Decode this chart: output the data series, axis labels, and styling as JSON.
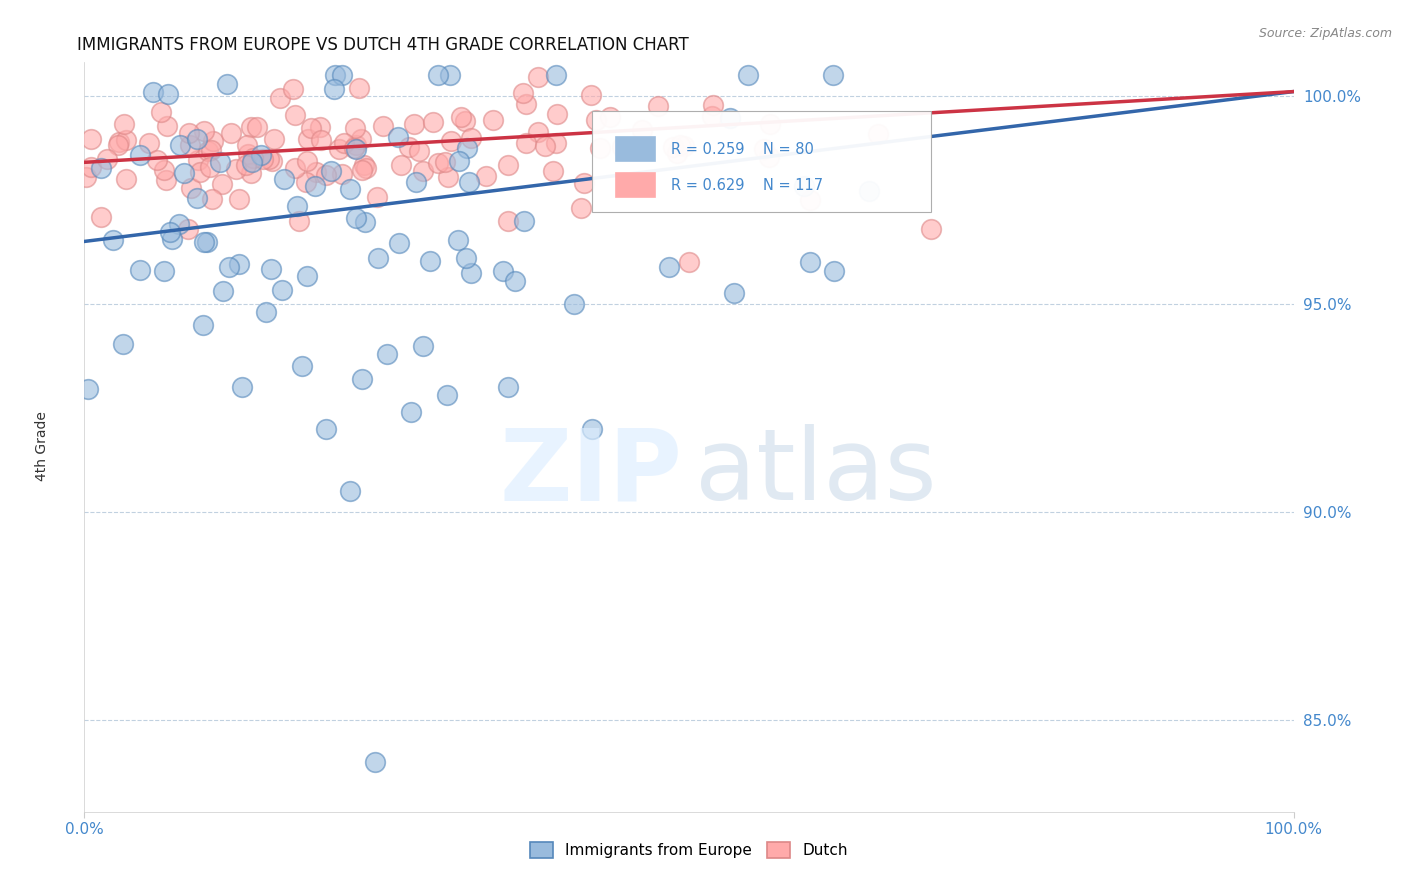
{
  "title": "IMMIGRANTS FROM EUROPE VS DUTCH 4TH GRADE CORRELATION CHART",
  "source": "Source: ZipAtlas.com",
  "ylabel": "4th Grade",
  "xlim": [
    0.0,
    1.0
  ],
  "ylim": [
    0.828,
    1.008
  ],
  "yticks": [
    0.85,
    0.9,
    0.95,
    1.0
  ],
  "ytick_labels": [
    "85.0%",
    "90.0%",
    "95.0%",
    "100.0%"
  ],
  "xticks": [
    0.0,
    1.0
  ],
  "xtick_labels": [
    "0.0%",
    "100.0%"
  ],
  "blue_R": 0.259,
  "blue_N": 80,
  "pink_R": 0.629,
  "pink_N": 117,
  "blue_color": "#99BBDD",
  "pink_color": "#FFAAAA",
  "blue_edge_color": "#5588BB",
  "pink_edge_color": "#DD8888",
  "blue_line_color": "#3366AA",
  "pink_line_color": "#CC3344",
  "legend_label_blue": "Immigrants from Europe",
  "legend_label_pink": "Dutch",
  "title_fontsize": 12,
  "axis_tick_color": "#4488CC",
  "grid_color": "#BBCCDD",
  "seed": 77,
  "blue_line_start_y": 0.965,
  "blue_line_end_y": 1.001,
  "pink_line_start_y": 0.984,
  "pink_line_end_y": 1.001
}
